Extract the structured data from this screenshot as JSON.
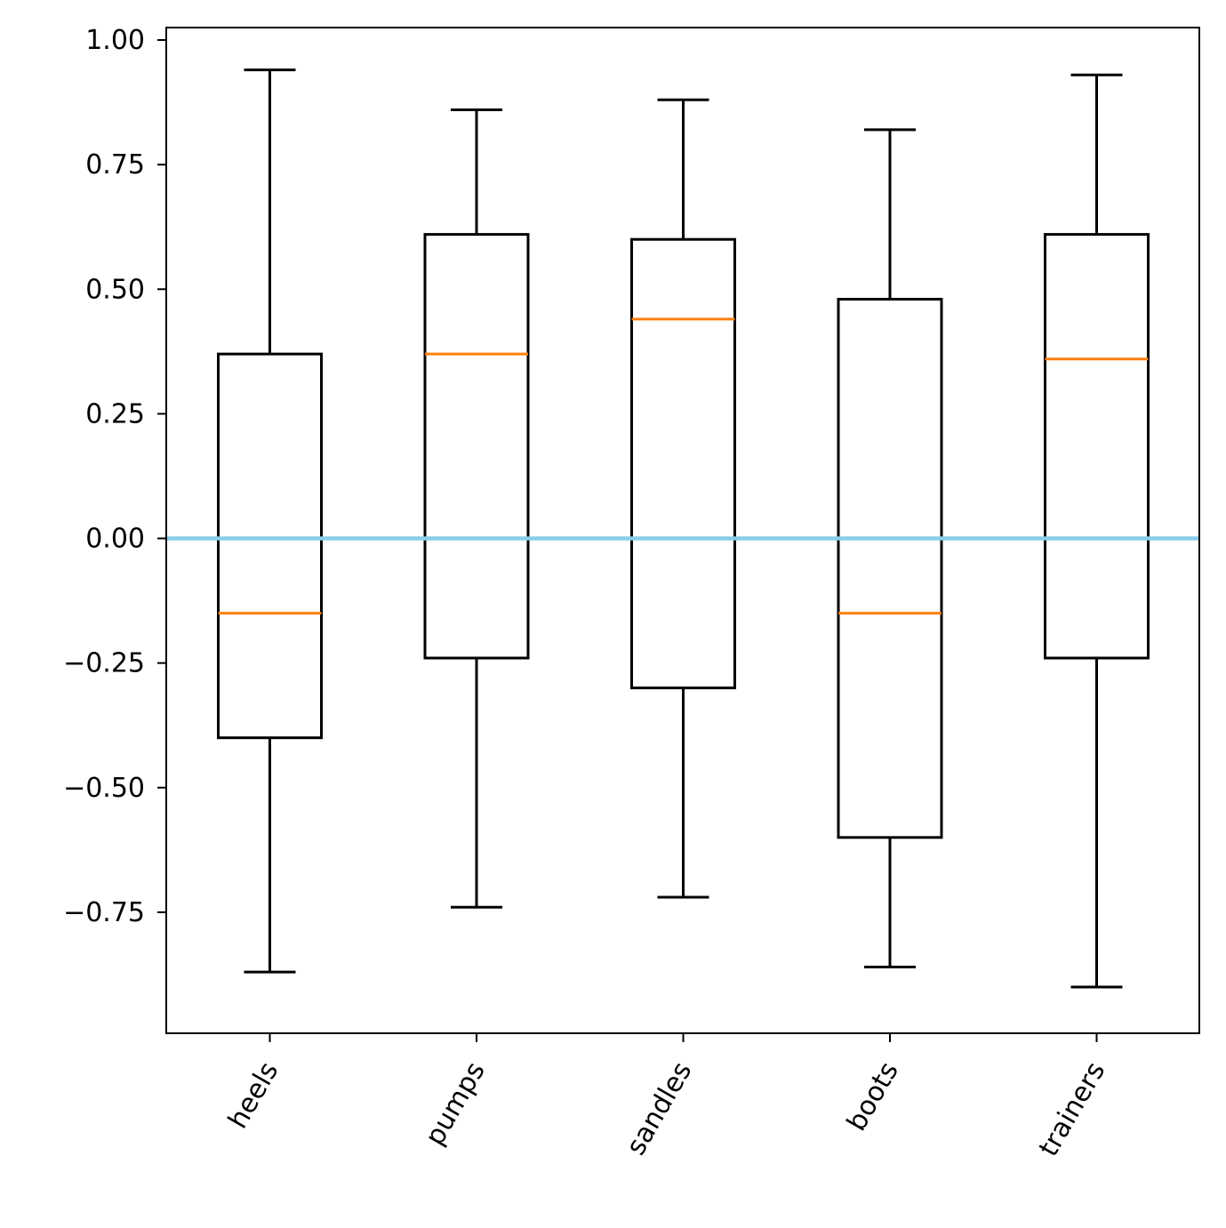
{
  "chart_data": {
    "type": "box",
    "title": "",
    "xlabel": "",
    "ylabel": "",
    "categories": [
      "heels",
      "pumps",
      "sandles",
      "boots",
      "trainers"
    ],
    "boxes": [
      {
        "name": "heels",
        "whisker_low": -0.87,
        "q1": -0.4,
        "median": -0.15,
        "q3": 0.37,
        "whisker_high": 0.94
      },
      {
        "name": "pumps",
        "whisker_low": -0.74,
        "q1": -0.24,
        "median": 0.37,
        "q3": 0.61,
        "whisker_high": 0.86
      },
      {
        "name": "sandles",
        "whisker_low": -0.72,
        "q1": -0.3,
        "median": 0.44,
        "q3": 0.6,
        "whisker_high": 0.88
      },
      {
        "name": "boots",
        "whisker_low": -0.86,
        "q1": -0.6,
        "median": -0.15,
        "q3": 0.48,
        "whisker_high": 0.82
      },
      {
        "name": "trainers",
        "whisker_low": -0.9,
        "q1": -0.24,
        "median": 0.36,
        "q3": 0.61,
        "whisker_high": 0.93
      }
    ],
    "reference_line": {
      "y": 0.0,
      "color": "#87ceeb"
    },
    "ylim": [
      -1.0,
      1.025
    ],
    "yticks": [
      -0.75,
      -0.5,
      -0.25,
      0.0,
      0.25,
      0.5,
      0.75,
      1.0
    ],
    "ytick_labels": [
      "−0.75",
      "−0.50",
      "−0.25",
      "0.00",
      "0.25",
      "0.50",
      "0.75",
      "1.00"
    ],
    "grid": false,
    "colors": {
      "box": "#000000",
      "median": "#ff7f0e",
      "reference": "#87ceeb"
    }
  }
}
